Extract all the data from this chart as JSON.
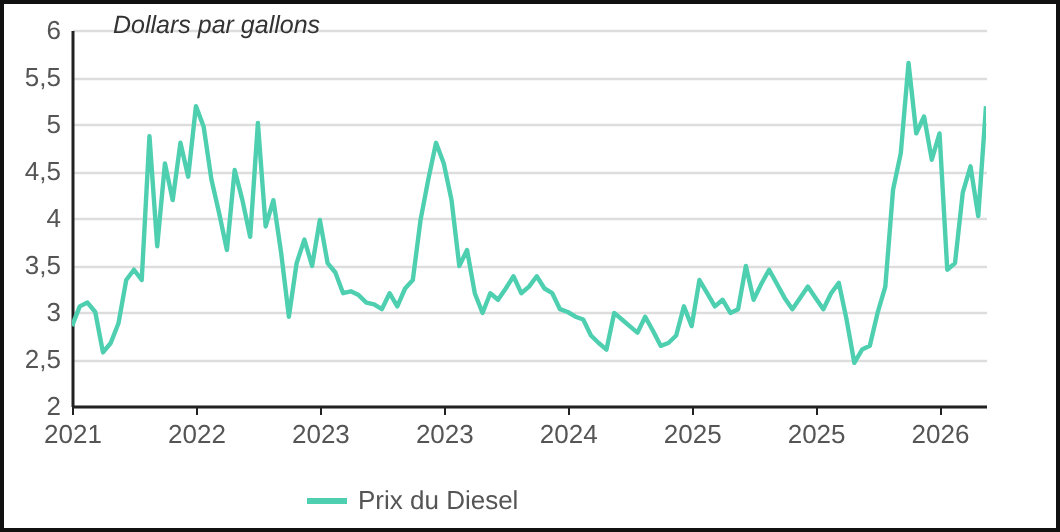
{
  "chart_data": {
    "type": "line",
    "ylabel": "Dollars par gallons",
    "ylim": [
      2,
      6
    ],
    "yticks": [
      {
        "value": 2,
        "label": "2"
      },
      {
        "value": 2.5,
        "label": "2,5"
      },
      {
        "value": 3,
        "label": "3"
      },
      {
        "value": 3.5,
        "label": "3,5"
      },
      {
        "value": 4,
        "label": "4"
      },
      {
        "value": 4.5,
        "label": "4,5"
      },
      {
        "value": 5,
        "label": "5"
      },
      {
        "value": 5.5,
        "label": "5,5"
      },
      {
        "value": 6,
        "label": "6"
      }
    ],
    "grid": "y",
    "legend": "bottom",
    "line_style": "solid",
    "categories": [
      "2021",
      null,
      null,
      null,
      null,
      null,
      null,
      null,
      null,
      null,
      null,
      null,
      null,
      null,
      null,
      null,
      "2022",
      null,
      null,
      null,
      null,
      null,
      null,
      null,
      null,
      null,
      null,
      null,
      null,
      null,
      null,
      null,
      "2023",
      null,
      null,
      null,
      null,
      null,
      null,
      null,
      null,
      null,
      null,
      null,
      null,
      null,
      null,
      null,
      "2023",
      null,
      null,
      null,
      null,
      null,
      null,
      null,
      null,
      null,
      null,
      null,
      null,
      null,
      null,
      null,
      "2024",
      null,
      null,
      null,
      null,
      null,
      null,
      null,
      null,
      null,
      null,
      null,
      null,
      null,
      null,
      null,
      "2025",
      null,
      null,
      null,
      null,
      null,
      null,
      null,
      null,
      null,
      null,
      null,
      null,
      null,
      null,
      null,
      "2025",
      null,
      null,
      null,
      null,
      null,
      null,
      null,
      null,
      null,
      null,
      null,
      null,
      null,
      null,
      null,
      "2026",
      null,
      null,
      null,
      null,
      null,
      null
    ],
    "series": [
      {
        "name": "Prix du Diesel",
        "color": "#4ecfb0",
        "values": [
          2.85,
          3.06,
          3.1,
          3.0,
          2.57,
          2.67,
          2.88,
          3.34,
          3.45,
          3.34,
          4.87,
          3.7,
          4.58,
          4.19,
          4.8,
          4.44,
          5.19,
          4.97,
          4.41,
          4.05,
          3.66,
          4.51,
          4.19,
          3.8,
          5.01,
          3.91,
          4.19,
          3.63,
          2.95,
          3.52,
          3.77,
          3.49,
          3.98,
          3.52,
          3.42,
          3.2,
          3.22,
          3.18,
          3.1,
          3.08,
          3.03,
          3.2,
          3.06,
          3.25,
          3.34,
          3.98,
          4.41,
          4.8,
          4.58,
          4.19,
          3.49,
          3.66,
          3.2,
          2.99,
          3.2,
          3.13,
          3.25,
          3.38,
          3.2,
          3.27,
          3.38,
          3.25,
          3.2,
          3.03,
          3.0,
          2.95,
          2.92,
          2.75,
          2.67,
          2.6,
          2.99,
          2.92,
          2.85,
          2.78,
          2.95,
          2.8,
          2.64,
          2.67,
          2.75,
          3.06,
          2.85,
          3.34,
          3.2,
          3.06,
          3.13,
          2.99,
          3.03,
          3.49,
          3.13,
          3.3,
          3.45,
          3.3,
          3.15,
          3.03,
          3.15,
          3.27,
          3.15,
          3.03,
          3.2,
          3.31,
          2.92,
          2.46,
          2.6,
          2.64,
          2.99,
          3.27,
          4.3,
          4.69,
          5.65,
          4.9,
          5.08,
          4.62,
          4.9,
          3.45,
          3.52,
          4.27,
          4.55,
          4.02,
          5.19
        ]
      }
    ]
  }
}
